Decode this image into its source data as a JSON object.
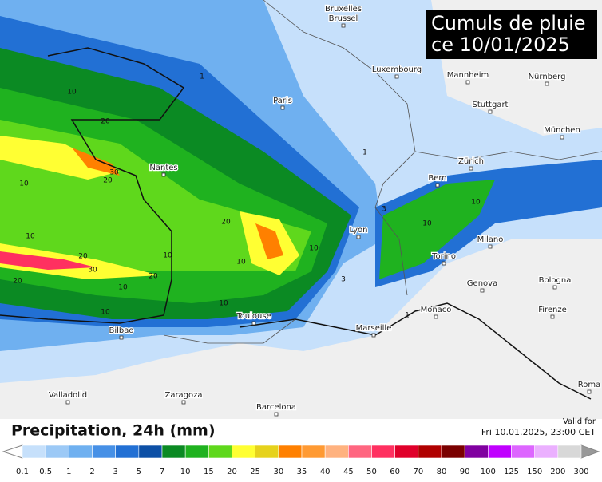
{
  "title_lines": [
    "Cumuls de pluie",
    "ce 10/01/2025"
  ],
  "cities": [
    "Bruxelles",
    "Brussel",
    "Luxembourg",
    "Mannheim",
    "Nürnberg",
    "Paris",
    "Stuttgart",
    "München",
    "Nantes",
    "Zürich",
    "Bern",
    "Lyon",
    "Milano",
    "Torino",
    "Genova",
    "Bologna",
    "Monaco",
    "Marseille",
    "Firenze",
    "Toulouse",
    "Bilbao",
    "Roma",
    "Valladolid",
    "Zaragoza",
    "Barcelona"
  ],
  "contour_labels": [
    10,
    20,
    30,
    20,
    10,
    20,
    30,
    20,
    10,
    20,
    10,
    10,
    10,
    10,
    20,
    10,
    3,
    1,
    1,
    3,
    1,
    10,
    10,
    10
  ],
  "legend": {
    "title": "Precipitation, 24h (mm)",
    "valid_label": "Valid for",
    "valid_time": "Fri 10.01.2025, 23:00 CET",
    "ticks": [
      0.1,
      0.5,
      1,
      2,
      3,
      5,
      7,
      10,
      15,
      20,
      25,
      30,
      35,
      40,
      45,
      50,
      60,
      70,
      80,
      90,
      100,
      125,
      150,
      200,
      300
    ],
    "colors": [
      "#c6e0fb",
      "#9cc9f6",
      "#6fb0f0",
      "#4690e6",
      "#2270d4",
      "#0d50a6",
      "#0b8a23",
      "#1fb21f",
      "#5fd81c",
      "#ffff33",
      "#e6d21c",
      "#ff8000",
      "#ff9a33",
      "#ffb27f",
      "#ff6680",
      "#ff3060",
      "#e0002a",
      "#b00000",
      "#7a0000",
      "#8000a0",
      "#c000ff",
      "#dd66ff",
      "#ebb0ff",
      "#d8d8d8"
    ]
  }
}
